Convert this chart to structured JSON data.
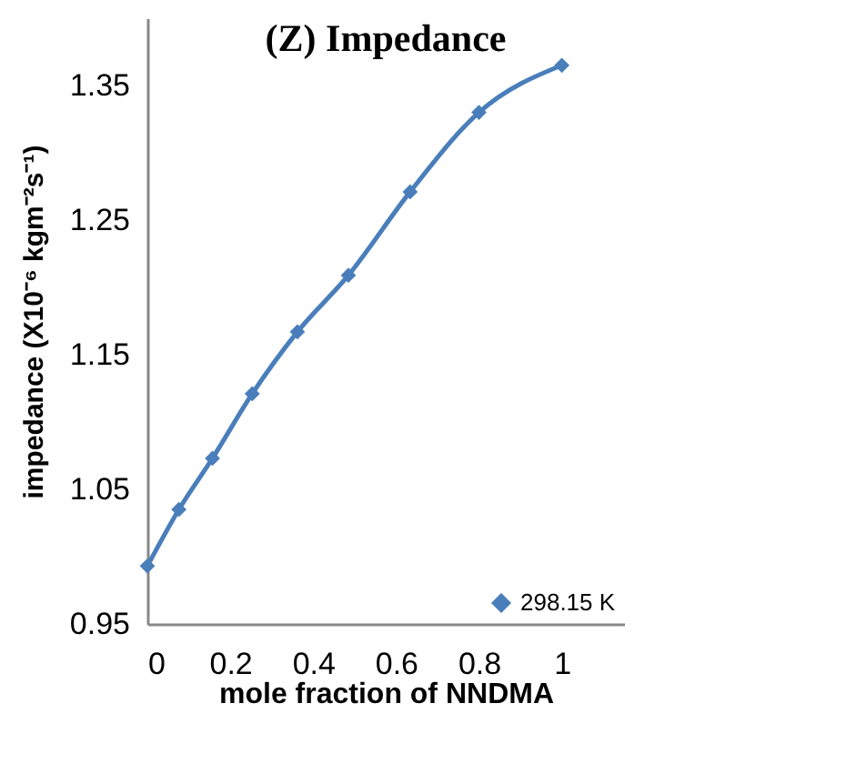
{
  "chart_data": {
    "type": "line",
    "title": "(Z) Impedance",
    "xlabel": "mole fraction of NNDMA",
    "ylabel": "impedance (X10⁻⁶ kgm⁻²s⁻¹)",
    "x": [
      0,
      0.076,
      0.157,
      0.253,
      0.362,
      0.485,
      0.634,
      0.8,
      1
    ],
    "series": [
      {
        "name": "298.15 K",
        "color": "#4a7ebb",
        "values": [
          0.993,
          1.035,
          1.073,
          1.121,
          1.167,
          1.209,
          1.271,
          1.33,
          1.365
        ]
      }
    ],
    "xlim": [
      0,
      1.15
    ],
    "xticks": [
      0,
      0.2,
      0.4,
      0.6,
      0.8,
      1
    ],
    "ylim": [
      0.95,
      1.4
    ],
    "yticks": [
      0.95,
      1.05,
      1.15,
      1.25,
      1.35
    ],
    "marker": "diamond",
    "legend": "bottom right",
    "grid": false
  }
}
